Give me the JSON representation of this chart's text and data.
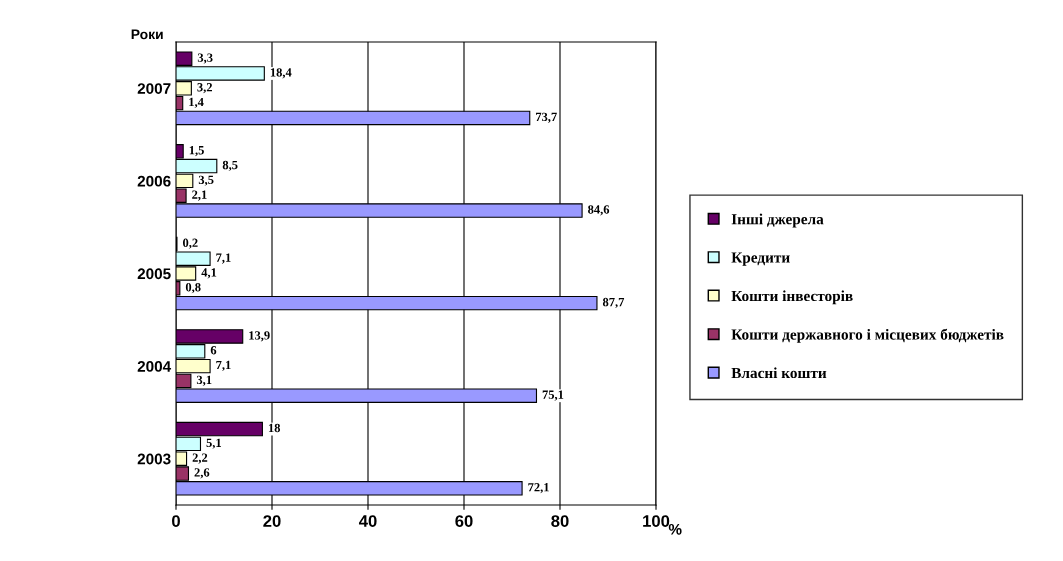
{
  "chart_data": {
    "type": "bar",
    "orientation": "horizontal",
    "ylabel": "Роки",
    "xlabel": "%",
    "categories": [
      "2007",
      "2006",
      "2005",
      "2004",
      "2003"
    ],
    "series": [
      {
        "name": "Інші джерела",
        "color": "#660066",
        "values": [
          3.3,
          1.5,
          0.2,
          13.9,
          18
        ],
        "value_labels": [
          "3,3",
          "1,5",
          "0,2",
          "13,9",
          "18"
        ]
      },
      {
        "name": "Кредити",
        "color": "#ccffff",
        "values": [
          18.4,
          8.5,
          7.1,
          6,
          5.1
        ],
        "value_labels": [
          "18,4",
          "8,5",
          "7,1",
          "6",
          "5,1"
        ]
      },
      {
        "name": "Кошти інвесторів",
        "color": "#ffffcc",
        "values": [
          3.2,
          3.5,
          4.1,
          7.1,
          2.2
        ],
        "value_labels": [
          "3,2",
          "3,5",
          "4,1",
          "7,1",
          "2,2"
        ]
      },
      {
        "name": "Кошти державного і місцевих бюджетів",
        "color": "#993366",
        "values": [
          1.4,
          2.1,
          0.8,
          3.1,
          2.6
        ],
        "value_labels": [
          "1,4",
          "2,1",
          "0,8",
          "3,1",
          "2,6"
        ]
      },
      {
        "name": "Власні кошти",
        "color": "#9999ff",
        "values": [
          73.7,
          84.6,
          87.7,
          75.1,
          72.1
        ],
        "value_labels": [
          "73,7",
          "84,6",
          "87,7",
          "75,1",
          "72,1"
        ]
      }
    ],
    "xlim": [
      0,
      100
    ],
    "xticks": [
      0,
      20,
      40,
      60,
      80,
      100
    ],
    "grid": "x",
    "legend": "right"
  }
}
